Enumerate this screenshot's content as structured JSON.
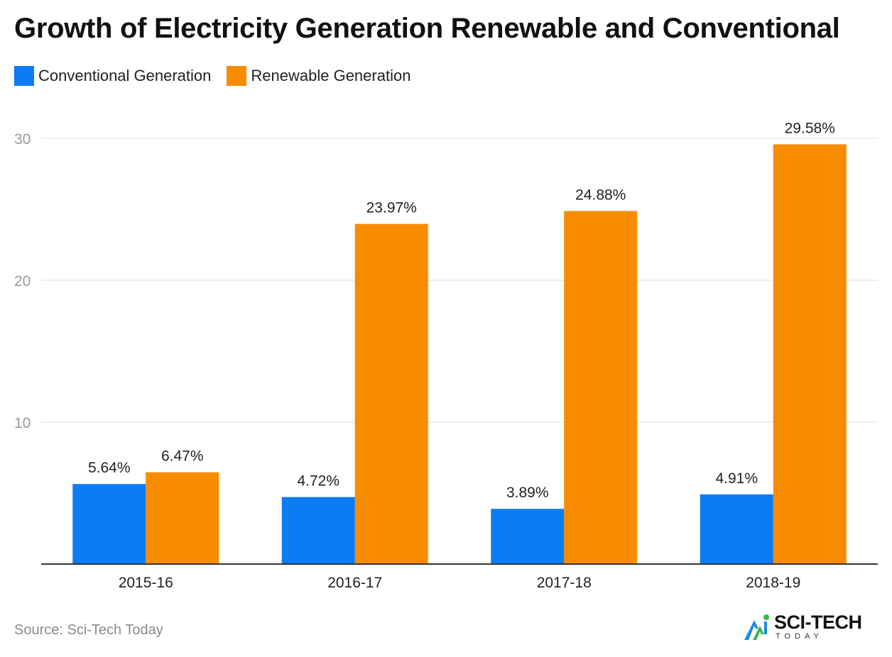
{
  "chart_data": {
    "type": "bar",
    "title": "Growth of Electricity Generation Renewable and Conventional",
    "categories": [
      "2015-16",
      "2016-17",
      "2017-18",
      "2018-19"
    ],
    "series": [
      {
        "name": "Conventional Generation",
        "color": "#0b7cf4",
        "values": [
          5.64,
          4.72,
          3.89,
          4.91
        ],
        "labels": [
          "5.64%",
          "4.72%",
          "3.89%",
          "4.91%"
        ]
      },
      {
        "name": "Renewable Generation",
        "color": "#f78c00",
        "values": [
          6.47,
          23.97,
          24.88,
          29.58
        ],
        "labels": [
          "6.47%",
          "23.97%",
          "24.88%",
          "29.58%"
        ]
      }
    ],
    "xlabel": "",
    "ylabel": "",
    "ylim": [
      0,
      30
    ],
    "yticks": [
      10,
      20,
      30
    ],
    "grid": true,
    "legend": "top-left"
  },
  "footer": {
    "source": "Source: Sci-Tech Today"
  },
  "brand": {
    "name": "SCI-TECH",
    "subtitle": "TODAY",
    "colors": [
      "#1a8de0",
      "#3bb54a"
    ]
  }
}
